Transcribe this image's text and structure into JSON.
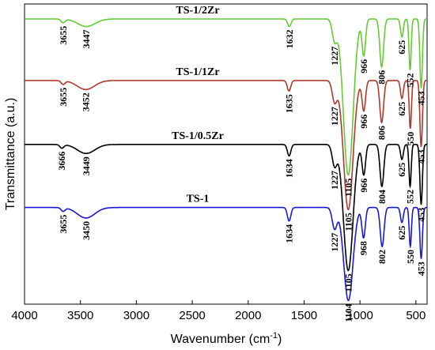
{
  "chart_data": {
    "type": "line",
    "title": "",
    "xlabel": "Wavenumber (cm",
    "xlabel_sup": "-1",
    "xlabel_close": ")",
    "ylabel": "Transmittance (a.u.)",
    "xlim": [
      4000,
      400
    ],
    "x_reversed": true,
    "xticks": [
      4000,
      3500,
      3000,
      2500,
      2000,
      1500,
      1000,
      500
    ],
    "xtick_labels": [
      "4000",
      "3500",
      "3000",
      "2500",
      "2000",
      "1500",
      "1000",
      "500"
    ],
    "y_ticks_shown": false,
    "grid": false,
    "colors": {
      "TS-1/2Zr": "#66cc33",
      "TS-1/1Zr": "#b03a2e",
      "TS-1/0.5Zr": "#000000",
      "TS-1": "#1a1ad6"
    },
    "series": [
      {
        "name": "TS-1/2Zr",
        "baseline": 0.95,
        "bands": [
          {
            "wn": 3655,
            "depth": 0.012,
            "width": 25
          },
          {
            "wn": 3447,
            "depth": 0.025,
            "width": 110
          },
          {
            "wn": 1632,
            "depth": 0.025,
            "width": 22
          },
          {
            "wn": 1227,
            "depth": 0.07,
            "width": 30
          },
          {
            "wn": 1105,
            "depth": 0.52,
            "width": 62
          },
          {
            "wn": 966,
            "depth": 0.12,
            "width": 22
          },
          {
            "wn": 806,
            "depth": 0.16,
            "width": 24
          },
          {
            "wn": 625,
            "depth": 0.06,
            "width": 18
          },
          {
            "wn": 552,
            "depth": 0.17,
            "width": 14
          },
          {
            "wn": 453,
            "depth": 0.23,
            "width": 16
          }
        ],
        "peak_labels": [
          "3655",
          "3447",
          "1632",
          "1227",
          "1105",
          "966",
          "806",
          "625",
          "552",
          "453"
        ]
      },
      {
        "name": "TS-1/1Zr",
        "baseline": 0.745,
        "bands": [
          {
            "wn": 3655,
            "depth": 0.012,
            "width": 25
          },
          {
            "wn": 3452,
            "depth": 0.03,
            "width": 110
          },
          {
            "wn": 1635,
            "depth": 0.035,
            "width": 22
          },
          {
            "wn": 1227,
            "depth": 0.07,
            "width": 30
          },
          {
            "wn": 1105,
            "depth": 0.43,
            "width": 60
          },
          {
            "wn": 966,
            "depth": 0.1,
            "width": 22
          },
          {
            "wn": 806,
            "depth": 0.14,
            "width": 24
          },
          {
            "wn": 625,
            "depth": 0.06,
            "width": 18
          },
          {
            "wn": 550,
            "depth": 0.16,
            "width": 14
          },
          {
            "wn": 453,
            "depth": 0.22,
            "width": 16
          }
        ],
        "peak_labels": [
          "3655",
          "3452",
          "1635",
          "1227",
          "1105",
          "966",
          "806",
          "625",
          "550",
          "453"
        ]
      },
      {
        "name": "TS-1/0.5Zr",
        "baseline": 0.532,
        "bands": [
          {
            "wn": 3666,
            "depth": 0.012,
            "width": 25
          },
          {
            "wn": 3449,
            "depth": 0.03,
            "width": 110
          },
          {
            "wn": 1634,
            "depth": 0.038,
            "width": 22
          },
          {
            "wn": 1227,
            "depth": 0.07,
            "width": 30
          },
          {
            "wn": 1105,
            "depth": 0.42,
            "width": 60
          },
          {
            "wn": 966,
            "depth": 0.1,
            "width": 22
          },
          {
            "wn": 804,
            "depth": 0.14,
            "width": 24
          },
          {
            "wn": 625,
            "depth": 0.05,
            "width": 18
          },
          {
            "wn": 552,
            "depth": 0.14,
            "width": 14
          },
          {
            "wn": 453,
            "depth": 0.2,
            "width": 16
          }
        ],
        "peak_labels": [
          "3666",
          "3449",
          "1634",
          "1227",
          "1105",
          "966",
          "804",
          "625",
          "552",
          "453"
        ]
      },
      {
        "name": "TS-1",
        "baseline": 0.322,
        "bands": [
          {
            "wn": 3655,
            "depth": 0.012,
            "width": 25
          },
          {
            "wn": 3450,
            "depth": 0.035,
            "width": 110
          },
          {
            "wn": 1634,
            "depth": 0.045,
            "width": 22
          },
          {
            "wn": 1227,
            "depth": 0.07,
            "width": 30
          },
          {
            "wn": 1104,
            "depth": 0.31,
            "width": 58
          },
          {
            "wn": 968,
            "depth": 0.1,
            "width": 22
          },
          {
            "wn": 802,
            "depth": 0.13,
            "width": 24
          },
          {
            "wn": 625,
            "depth": 0.05,
            "width": 18
          },
          {
            "wn": 550,
            "depth": 0.13,
            "width": 14
          },
          {
            "wn": 453,
            "depth": 0.17,
            "width": 16
          }
        ],
        "peak_labels": [
          "3655",
          "3450",
          "1634",
          "1227",
          "1104",
          "968",
          "802",
          "625",
          "550",
          "453"
        ]
      }
    ]
  }
}
